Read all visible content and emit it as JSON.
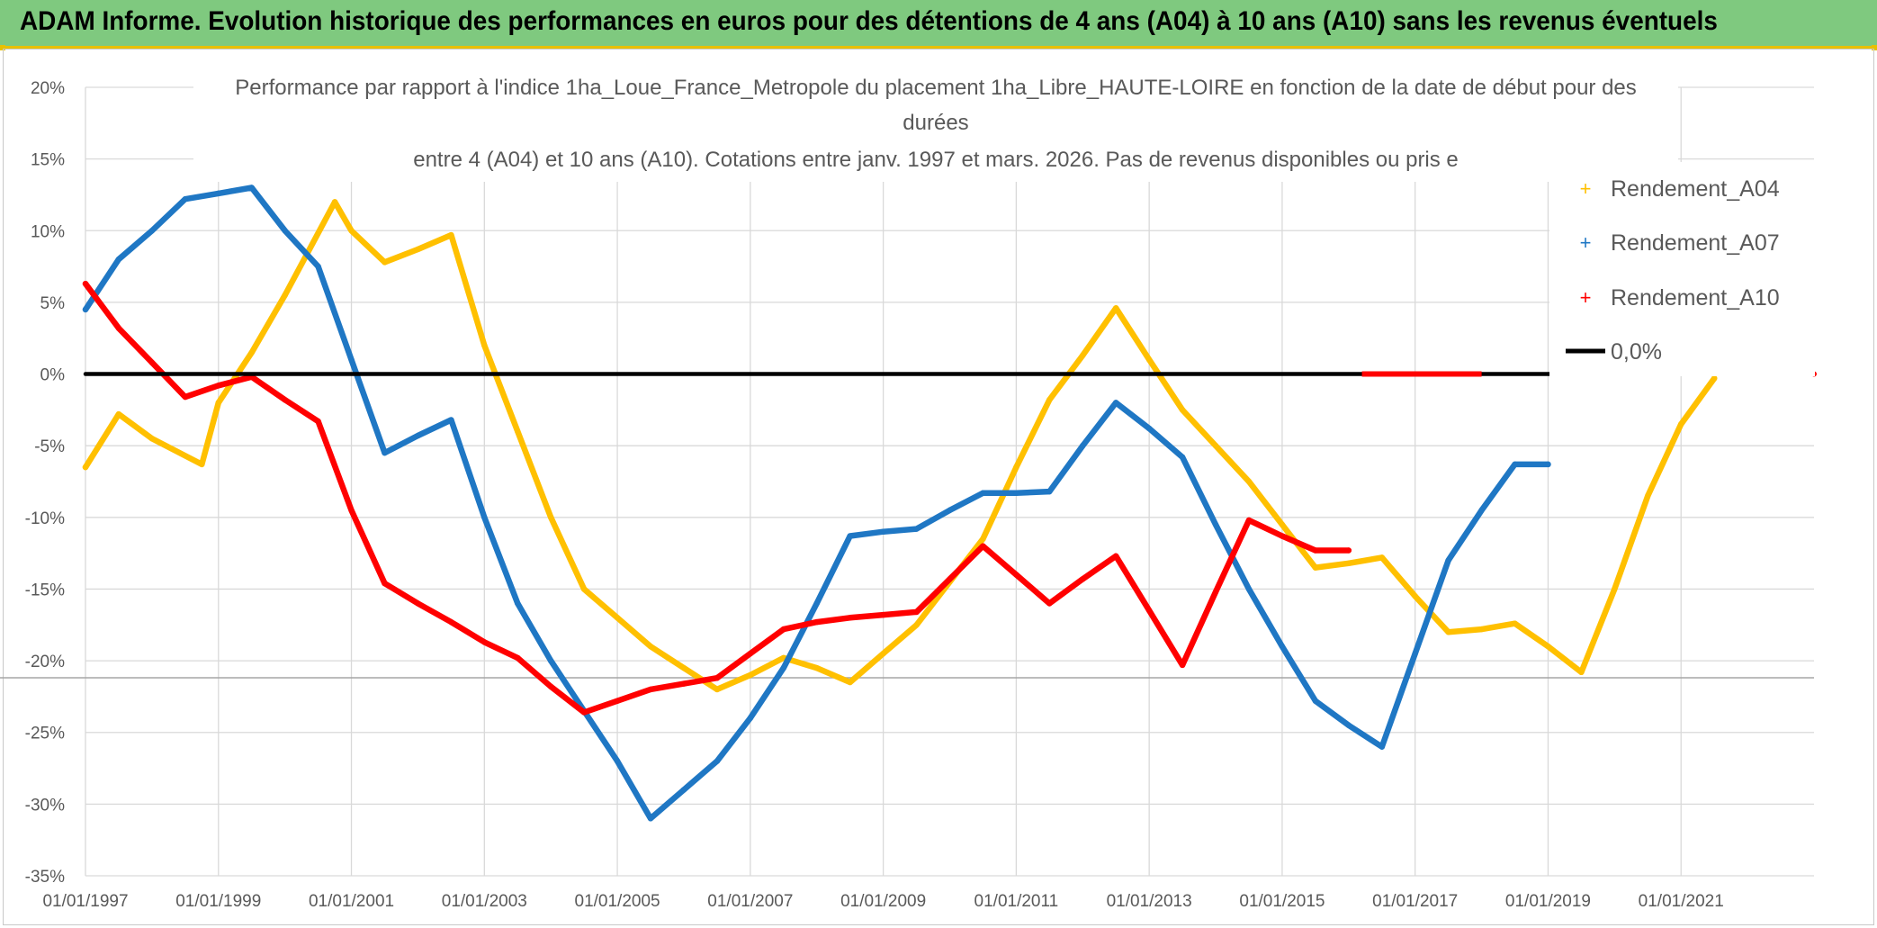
{
  "header": {
    "title": "ADAM Informe. Evolution historique des performances en euros pour des détentions de 4 ans (A04) à 10 ans (A10) sans les revenus éventuels",
    "bar_color": "#7fc97f",
    "accent_color": "#e8c000"
  },
  "chart_data": {
    "type": "line",
    "title_lines": [
      "Performance par rapport à l'indice 1ha_Loue_France_Metropole  du placement 1ha_Libre_HAUTE-LOIRE en fonction de la date de début pour des",
      "durées",
      "entre 4 (A04) et 10 ans (A10). Cotations entre janv. 1997 et mars. 2026. Pas de revenus disponibles ou pris e"
    ],
    "xlim": [
      1997.0,
      2023.0
    ],
    "ylim": [
      -35,
      20
    ],
    "x_ticks": [
      1997,
      1999,
      2001,
      2003,
      2005,
      2007,
      2009,
      2011,
      2013,
      2015,
      2017,
      2019,
      2021
    ],
    "x_tick_labels": [
      "01/01/1997",
      "01/01/1999",
      "01/01/2001",
      "01/01/2003",
      "01/01/2005",
      "01/01/2007",
      "01/01/2009",
      "01/01/2011",
      "01/01/2013",
      "01/01/2015",
      "01/01/2017",
      "01/01/2019",
      "01/01/2021"
    ],
    "y_ticks": [
      20,
      15,
      10,
      5,
      0,
      -5,
      -10,
      -15,
      -20,
      -25,
      -30,
      -35
    ],
    "y_tick_labels": [
      "20%",
      "15%",
      "10%",
      "5%",
      "0%",
      "-5%",
      "-10%",
      "-15%",
      "-20%",
      "-25%",
      "-30%",
      "-35%"
    ],
    "grid": true,
    "legend_position": "top-right",
    "series": [
      {
        "name": "Rendement_A04",
        "color": "#ffc000",
        "x": [
          1997.0,
          1997.5,
          1998.0,
          1998.75,
          1999.0,
          1999.5,
          2000.0,
          2000.75,
          2001.0,
          2001.5,
          2002.0,
          2002.5,
          2003.0,
          2003.5,
          2004.0,
          2004.5,
          2005.0,
          2005.5,
          2006.0,
          2006.5,
          2007.0,
          2007.5,
          2008.0,
          2008.5,
          2009.0,
          2009.5,
          2010.0,
          2010.5,
          2011.0,
          2011.5,
          2012.0,
          2012.5,
          2013.0,
          2013.5,
          2014.0,
          2014.5,
          2015.0,
          2015.5,
          2016.0,
          2016.5,
          2017.0,
          2017.5,
          2018.0,
          2018.5,
          2019.0,
          2019.5,
          2020.0,
          2020.5,
          2021.0,
          2021.5
        ],
        "y": [
          -6.5,
          -2.8,
          -4.5,
          -6.3,
          -2.0,
          1.5,
          5.5,
          12.0,
          10.0,
          7.8,
          8.7,
          9.7,
          2.0,
          -4.0,
          -10.0,
          -15.0,
          -17.0,
          -19.0,
          -20.5,
          -22.0,
          -21.0,
          -19.8,
          -20.5,
          -21.5,
          -19.5,
          -17.5,
          -14.5,
          -11.5,
          -6.5,
          -1.8,
          1.3,
          4.6,
          1.0,
          -2.5,
          -5.0,
          -7.5,
          -10.5,
          -13.5,
          -13.2,
          -12.8,
          -15.5,
          -18.0,
          -17.8,
          -17.4,
          -19.0,
          -20.8,
          -15.0,
          -8.5,
          -3.5,
          -0.3
        ]
      },
      {
        "name": "Rendement_A07",
        "color": "#1f77c4",
        "x": [
          1997.0,
          1997.5,
          1998.0,
          1998.5,
          1999.0,
          1999.5,
          2000.0,
          2000.5,
          2001.0,
          2001.5,
          2002.0,
          2002.5,
          2003.0,
          2003.5,
          2004.0,
          2004.5,
          2005.0,
          2005.5,
          2006.0,
          2006.5,
          2007.0,
          2007.5,
          2008.0,
          2008.5,
          2009.0,
          2009.5,
          2010.0,
          2010.5,
          2011.0,
          2011.5,
          2012.0,
          2012.5,
          2013.0,
          2013.5,
          2014.0,
          2014.5,
          2015.0,
          2015.5,
          2016.0,
          2016.5,
          2017.0,
          2017.5,
          2018.0,
          2018.5,
          2019.0
        ],
        "y": [
          4.5,
          8.0,
          10.0,
          12.2,
          12.6,
          13.0,
          10.0,
          7.5,
          1.0,
          -5.5,
          -4.3,
          -3.2,
          -10.0,
          -16.0,
          -20.0,
          -23.5,
          -27.0,
          -31.0,
          -29.0,
          -27.0,
          -24.0,
          -20.5,
          -16.0,
          -11.3,
          -11.0,
          -10.8,
          -9.5,
          -8.3,
          -8.3,
          -8.2,
          -5.0,
          -2.0,
          -3.8,
          -5.8,
          -10.5,
          -15.0,
          -19.0,
          -22.8,
          -24.5,
          -26.0,
          -19.5,
          -13.0,
          -9.5,
          -6.3,
          -6.3
        ]
      },
      {
        "name": "Rendement_A10",
        "color": "#ff0000",
        "x": [
          1997.0,
          1997.5,
          1998.0,
          1998.5,
          1999.0,
          1999.5,
          2000.0,
          2000.5,
          2001.0,
          2001.5,
          2002.0,
          2002.5,
          2003.0,
          2003.5,
          2004.0,
          2004.5,
          2005.0,
          2005.5,
          2006.0,
          2006.5,
          2007.0,
          2007.5,
          2008.0,
          2008.5,
          2009.0,
          2009.5,
          2010.0,
          2010.5,
          2011.0,
          2011.5,
          2012.0,
          2012.5,
          2013.0,
          2013.5,
          2014.0,
          2014.5,
          2015.0,
          2015.5,
          2016.0
        ],
        "y": [
          6.3,
          3.2,
          0.8,
          -1.6,
          -0.8,
          -0.2,
          -1.8,
          -3.3,
          -9.5,
          -14.6,
          -16.0,
          -17.3,
          -18.7,
          -19.8,
          -21.8,
          -23.6,
          -22.8,
          -22.0,
          -21.6,
          -21.2,
          -19.5,
          -17.8,
          -17.3,
          -17.0,
          -16.8,
          -16.6,
          -14.3,
          -12.0,
          -14.0,
          -16.0,
          -14.3,
          -12.7,
          -16.5,
          -20.3,
          -15.2,
          -10.2,
          -11.3,
          -12.3,
          -12.3
        ]
      },
      {
        "name": "0,0%",
        "color": "#000000",
        "x": [
          1997.0,
          2023.0
        ],
        "y": [
          0,
          0
        ]
      }
    ],
    "zero_segment": {
      "color": "#ff0000",
      "x": [
        2016.2,
        2018.0
      ]
    }
  }
}
